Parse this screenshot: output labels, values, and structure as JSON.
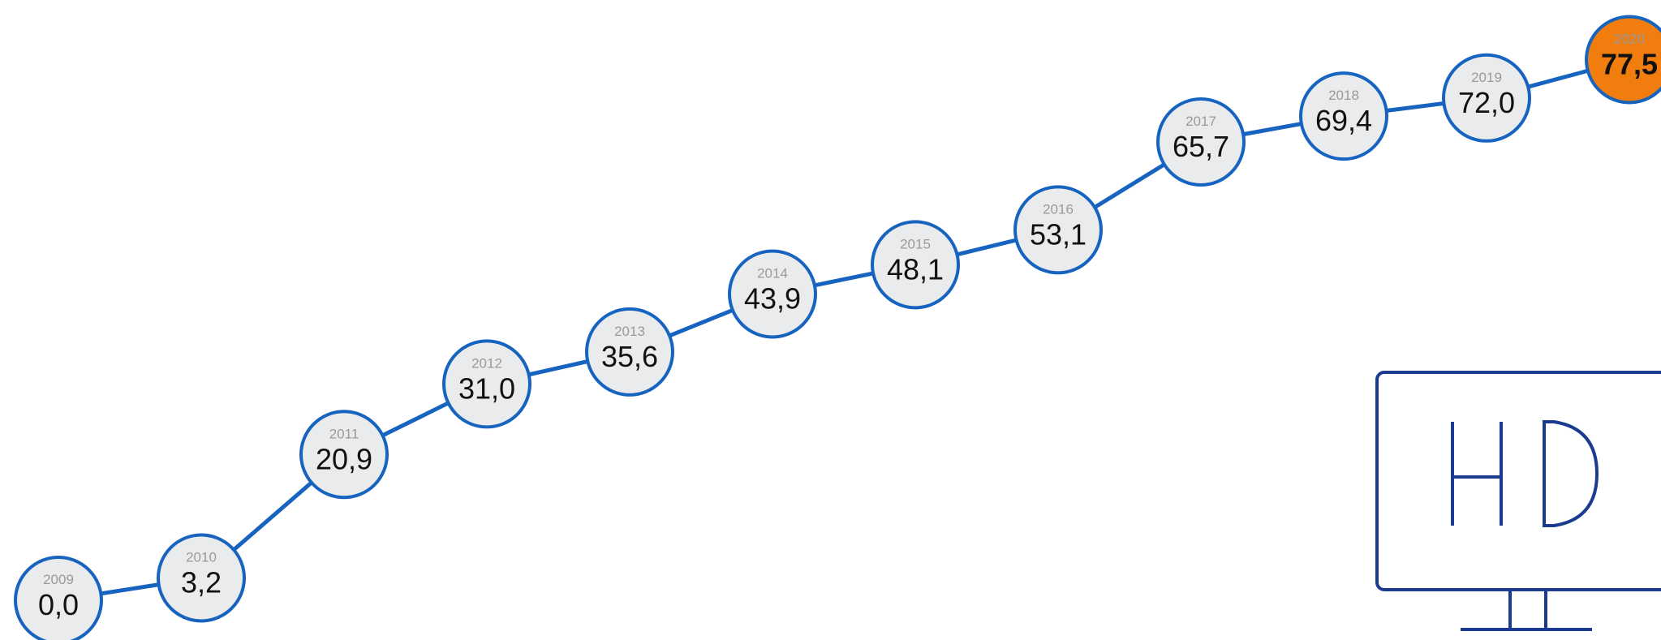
{
  "chart_data": {
    "type": "line",
    "x": [
      "2009",
      "2010",
      "2011",
      "2012",
      "2013",
      "2014",
      "2015",
      "2016",
      "2017",
      "2018",
      "2019",
      "2020"
    ],
    "values": [
      0.0,
      3.2,
      20.9,
      31.0,
      35.6,
      43.9,
      48.1,
      53.1,
      65.7,
      69.4,
      72.0,
      77.5
    ],
    "value_labels": [
      "0,0",
      "3,2",
      "20,9",
      "31,0",
      "35,6",
      "43,9",
      "48,1",
      "53,1",
      "65,7",
      "69,4",
      "72,0",
      "77,5"
    ],
    "highlight_index": 11,
    "title": "",
    "xlabel": "",
    "ylabel": "",
    "grid": false,
    "legend": "none"
  },
  "colors": {
    "line": "#1763c0",
    "node_fill": "#eaebec",
    "node_stroke": "#1763c0",
    "highlight_fill": "#f07d0e",
    "highlight_stroke": "#1763c0",
    "highlight_text": "#ffffff",
    "monitor": "#1a3b8f"
  },
  "decoration": {
    "icon": "hd-monitor-icon",
    "text": "HD"
  }
}
